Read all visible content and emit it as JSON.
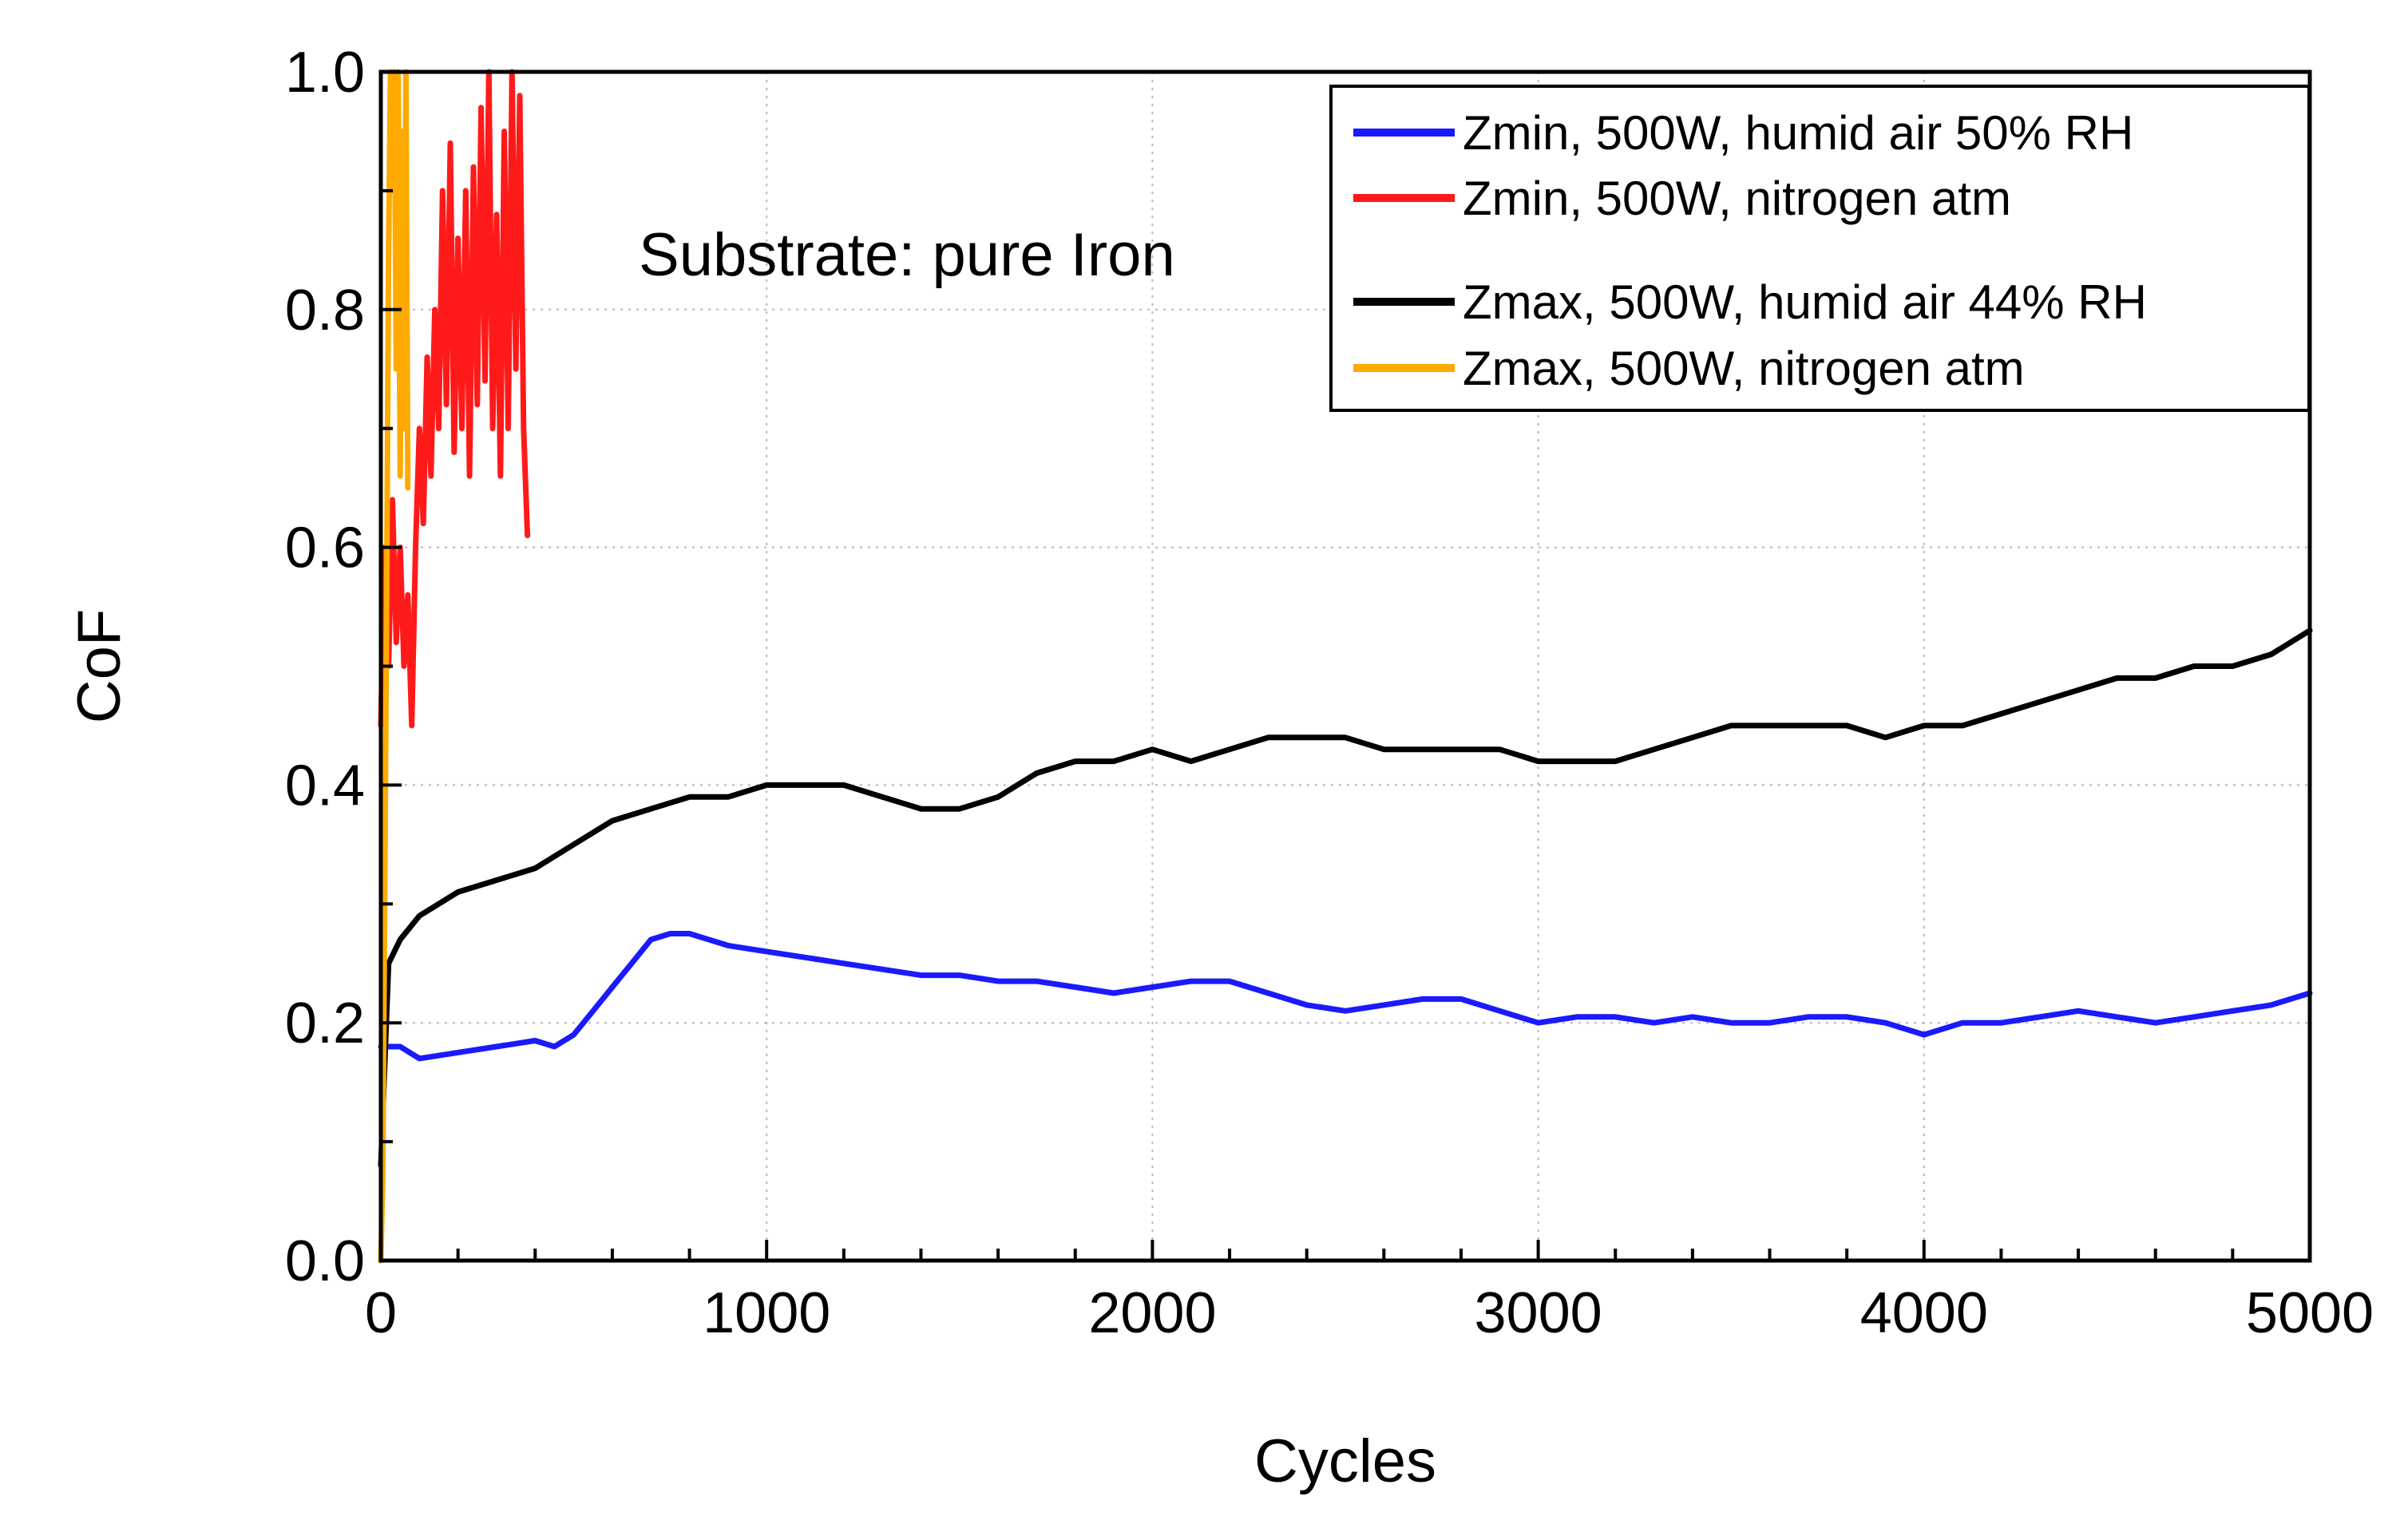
{
  "chart_data": {
    "type": "line",
    "title": "",
    "xlabel": "Cycles",
    "ylabel": "CoF",
    "xlim": [
      0,
      5000
    ],
    "ylim": [
      0.0,
      1.0
    ],
    "x_ticks": [
      "0",
      "1000",
      "2000",
      "3000",
      "4000",
      "5000"
    ],
    "y_ticks": [
      "0.0",
      "0.2",
      "0.4",
      "0.6",
      "0.8",
      "1.0"
    ],
    "annotation": "Substrate: pure Iron",
    "grid": true,
    "legend_position": "top-right",
    "series": [
      {
        "name": "Zmin, 500W, humid air 50% RH",
        "color": "#1a1aff",
        "x": [
          0,
          50,
          100,
          200,
          300,
          400,
          450,
          500,
          550,
          600,
          650,
          700,
          750,
          800,
          900,
          1000,
          1100,
          1200,
          1300,
          1400,
          1500,
          1600,
          1700,
          1800,
          1900,
          2000,
          2100,
          2200,
          2300,
          2400,
          2500,
          2600,
          2700,
          2800,
          2900,
          3000,
          3100,
          3200,
          3300,
          3400,
          3500,
          3600,
          3700,
          3800,
          3900,
          4000,
          4100,
          4200,
          4300,
          4400,
          4500,
          4600,
          4700,
          4800,
          4900,
          5000
        ],
        "y": [
          0.18,
          0.18,
          0.17,
          0.175,
          0.18,
          0.185,
          0.18,
          0.19,
          0.21,
          0.23,
          0.25,
          0.27,
          0.275,
          0.275,
          0.265,
          0.26,
          0.255,
          0.25,
          0.245,
          0.24,
          0.24,
          0.235,
          0.235,
          0.23,
          0.225,
          0.23,
          0.235,
          0.235,
          0.225,
          0.215,
          0.21,
          0.215,
          0.22,
          0.22,
          0.21,
          0.2,
          0.205,
          0.205,
          0.2,
          0.205,
          0.2,
          0.2,
          0.205,
          0.205,
          0.2,
          0.19,
          0.2,
          0.2,
          0.205,
          0.21,
          0.205,
          0.2,
          0.205,
          0.21,
          0.215,
          0.225
        ]
      },
      {
        "name": "Zmin, 500W, nitrogen atm",
        "color": "#ff1a1a",
        "x": [
          0,
          10,
          20,
          30,
          40,
          50,
          60,
          70,
          80,
          90,
          100,
          110,
          120,
          130,
          140,
          150,
          160,
          170,
          180,
          190,
          200,
          210,
          220,
          230,
          240,
          250,
          260,
          270,
          280,
          290,
          300,
          310,
          320,
          330,
          340,
          350,
          360,
          370,
          380
        ],
        "y": [
          0.45,
          0.6,
          0.5,
          0.64,
          0.52,
          0.6,
          0.5,
          0.56,
          0.45,
          0.6,
          0.7,
          0.62,
          0.76,
          0.66,
          0.8,
          0.7,
          0.9,
          0.72,
          0.94,
          0.68,
          0.86,
          0.7,
          0.9,
          0.66,
          0.92,
          0.72,
          0.97,
          0.74,
          1.0,
          0.7,
          0.88,
          0.66,
          0.95,
          0.7,
          1.0,
          0.75,
          0.98,
          0.7,
          0.61
        ]
      },
      {
        "name": "Zmax, 500W, humid air 44% RH",
        "color": "#000000",
        "x": [
          0,
          20,
          50,
          100,
          200,
          300,
          400,
          500,
          600,
          700,
          800,
          900,
          1000,
          1100,
          1200,
          1300,
          1400,
          1500,
          1600,
          1700,
          1800,
          1900,
          2000,
          2100,
          2200,
          2300,
          2400,
          2500,
          2600,
          2700,
          2800,
          2900,
          3000,
          3100,
          3200,
          3300,
          3400,
          3500,
          3600,
          3700,
          3800,
          3900,
          4000,
          4100,
          4200,
          4300,
          4400,
          4500,
          4600,
          4700,
          4800,
          4900,
          5000
        ],
        "y": [
          0.08,
          0.25,
          0.27,
          0.29,
          0.31,
          0.32,
          0.33,
          0.35,
          0.37,
          0.38,
          0.39,
          0.39,
          0.4,
          0.4,
          0.4,
          0.39,
          0.38,
          0.38,
          0.39,
          0.41,
          0.42,
          0.42,
          0.43,
          0.42,
          0.43,
          0.44,
          0.44,
          0.44,
          0.43,
          0.43,
          0.43,
          0.43,
          0.42,
          0.42,
          0.42,
          0.43,
          0.44,
          0.45,
          0.45,
          0.45,
          0.45,
          0.44,
          0.45,
          0.45,
          0.46,
          0.47,
          0.48,
          0.49,
          0.49,
          0.5,
          0.5,
          0.51,
          0.53
        ]
      },
      {
        "name": "Zmax, 500W, nitrogen atm",
        "color": "#ffaa00",
        "x": [
          0,
          5,
          10,
          15,
          20,
          25,
          30,
          35,
          40,
          45,
          50,
          55,
          60,
          65,
          70
        ],
        "y": [
          0.0,
          0.07,
          0.3,
          0.55,
          0.85,
          1.0,
          0.9,
          1.0,
          0.75,
          1.0,
          0.66,
          0.95,
          0.7,
          1.0,
          0.65
        ]
      }
    ]
  }
}
